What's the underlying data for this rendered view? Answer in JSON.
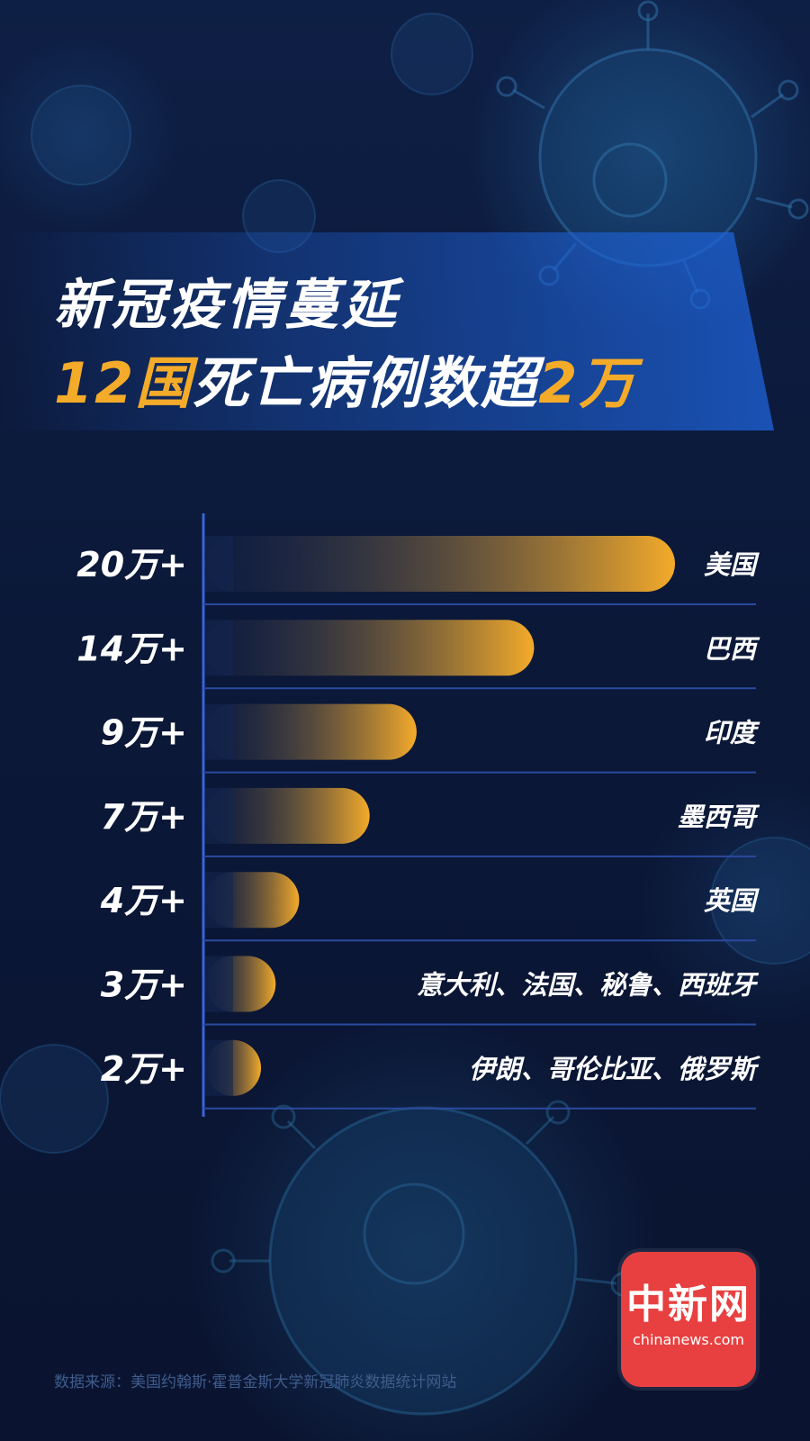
{
  "title": {
    "line1": "新冠疫情蔓延",
    "line2_part1": "12国",
    "line2_part2": "死亡病例数超",
    "line2_part3": "2万"
  },
  "chart_data": {
    "type": "bar",
    "orientation": "horizontal",
    "value_labels": [
      "20万+",
      "14万+",
      "9万+",
      "7万+",
      "4万+",
      "3万+",
      "2万+"
    ],
    "categories": [
      "美国",
      "巴西",
      "印度",
      "墨西哥",
      "英国",
      "意大利、法国、秘鲁、西班牙",
      "伊朗、哥伦比亚、俄罗斯"
    ],
    "values": [
      200000,
      140000,
      90000,
      70000,
      40000,
      30000,
      20000
    ],
    "xlim": [
      0,
      200000
    ],
    "grid": true,
    "colors": {
      "bar_end": "#f4ab2a",
      "bar_start": "#1a2a55",
      "gridline": "#2a4aa0",
      "axis": "#3a63d8"
    }
  },
  "source": "数据来源：美国约翰斯·霍普金斯大学新冠肺炎数据统计网站",
  "logo": {
    "chinese": "中新网",
    "url": "chinanews.com",
    "color": "#e84040"
  }
}
